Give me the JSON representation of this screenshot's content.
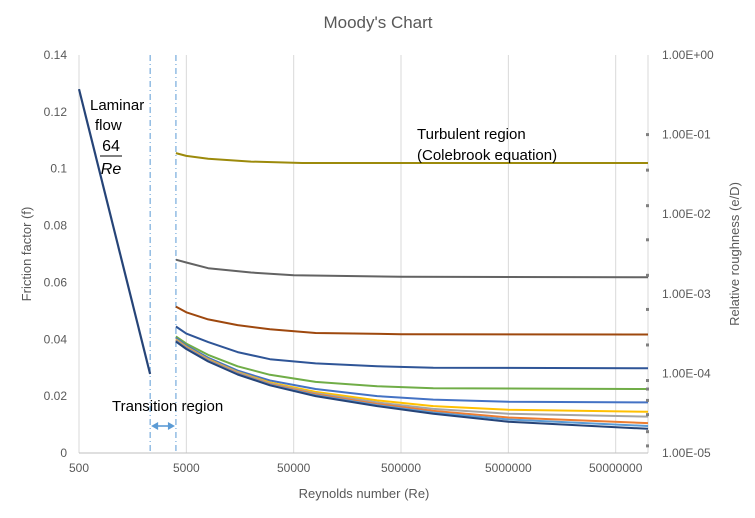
{
  "chart_data": {
    "type": "line",
    "title": "Moody's Chart",
    "xlabel": "Reynolds number (Re)",
    "ylabel": "Friction factor (f)",
    "y2label": "Relative roughness (e/D)",
    "x_scale": "log",
    "x_ticks": [
      500,
      5000,
      50000,
      500000,
      5000000,
      50000000
    ],
    "x_tick_labels": [
      "500",
      "5000",
      "50000",
      "500000",
      "5000000",
      "50000000"
    ],
    "xlim": [
      500,
      100000000
    ],
    "ylim": [
      0,
      0.14
    ],
    "y_ticks": [
      0,
      0.02,
      0.04,
      0.06,
      0.08,
      0.1,
      0.12,
      0.14
    ],
    "y_tick_labels": [
      "0",
      "0.02",
      "0.04",
      "0.06",
      "0.08",
      "0.1",
      "0.12",
      "0.14"
    ],
    "y2_scale": "log",
    "y2_ticks": [
      1,
      0.1,
      0.01,
      0.001,
      0.0001,
      1e-05
    ],
    "y2_tick_labels": [
      "1.00E+00",
      "1.00E-01",
      "1.00E-02",
      "1.00E-03",
      "1.00E-04",
      "1.00E-05"
    ],
    "grid": "vertical",
    "laminar": {
      "x": [
        500,
        2300
      ],
      "y": [
        0.128,
        0.0278
      ],
      "color": "#264478"
    },
    "transition_lines": [
      2300,
      4000
    ],
    "series": [
      {
        "color": "#9c8a0b",
        "x": [
          4000,
          5000,
          8000,
          20000,
          60000,
          100000000
        ],
        "y": [
          0.1055,
          0.1045,
          0.1035,
          0.1025,
          0.102,
          0.102
        ]
      },
      {
        "color": "#636363",
        "x": [
          4000,
          5000,
          8000,
          20000,
          50000,
          500000,
          100000000
        ],
        "y": [
          0.068,
          0.067,
          0.065,
          0.0635,
          0.0625,
          0.062,
          0.0618
        ]
      },
      {
        "color": "#9e480e",
        "x": [
          4000,
          5000,
          8000,
          15000,
          30000,
          80000,
          500000,
          100000000
        ],
        "y": [
          0.0515,
          0.0495,
          0.047,
          0.045,
          0.0435,
          0.0422,
          0.0418,
          0.0417
        ]
      },
      {
        "color": "#2f5597",
        "x": [
          4000,
          5000,
          8000,
          15000,
          30000,
          80000,
          300000,
          1000000,
          100000000
        ],
        "y": [
          0.0445,
          0.042,
          0.039,
          0.0355,
          0.033,
          0.0315,
          0.0305,
          0.03,
          0.0298
        ]
      },
      {
        "color": "#70ad47",
        "x": [
          4000,
          5000,
          8000,
          15000,
          30000,
          80000,
          300000,
          1000000,
          100000000
        ],
        "y": [
          0.041,
          0.0385,
          0.0345,
          0.0305,
          0.0275,
          0.025,
          0.0235,
          0.0228,
          0.0225
        ]
      },
      {
        "color": "#4472c4",
        "x": [
          4000,
          5000,
          8000,
          15000,
          30000,
          80000,
          300000,
          1000000,
          5000000,
          100000000
        ],
        "y": [
          0.0405,
          0.0378,
          0.0335,
          0.029,
          0.0255,
          0.0225,
          0.02,
          0.0188,
          0.018,
          0.0178
        ]
      },
      {
        "color": "#ffc000",
        "x": [
          4000,
          5000,
          8000,
          15000,
          30000,
          80000,
          300000,
          1000000,
          5000000,
          100000000
        ],
        "y": [
          0.04,
          0.0374,
          0.033,
          0.0285,
          0.0248,
          0.0215,
          0.0185,
          0.0165,
          0.0152,
          0.0145
        ]
      },
      {
        "color": "#a5a5a5",
        "x": [
          4000,
          5000,
          8000,
          15000,
          30000,
          80000,
          300000,
          1000000,
          5000000,
          100000000
        ],
        "y": [
          0.0398,
          0.0372,
          0.0328,
          0.0283,
          0.0245,
          0.021,
          0.0178,
          0.0155,
          0.0138,
          0.0128
        ]
      },
      {
        "color": "#ed7d31",
        "x": [
          4000,
          5000,
          8000,
          15000,
          30000,
          80000,
          300000,
          1000000,
          5000000,
          100000000
        ],
        "y": [
          0.0396,
          0.037,
          0.0326,
          0.028,
          0.0242,
          0.0206,
          0.0172,
          0.0148,
          0.0125,
          0.0105
        ]
      },
      {
        "color": "#5b9bd5",
        "x": [
          4000,
          5000,
          8000,
          15000,
          30000,
          80000,
          300000,
          1000000,
          5000000,
          100000000
        ],
        "y": [
          0.0394,
          0.0368,
          0.0324,
          0.0278,
          0.024,
          0.0203,
          0.0168,
          0.0142,
          0.0118,
          0.0095
        ]
      },
      {
        "color": "#264478",
        "x": [
          4000,
          5000,
          8000,
          15000,
          30000,
          80000,
          300000,
          1000000,
          5000000,
          100000000
        ],
        "y": [
          0.0392,
          0.0366,
          0.0322,
          0.0276,
          0.0238,
          0.02,
          0.0165,
          0.0138,
          0.011,
          0.0085
        ]
      }
    ],
    "annotations": {
      "laminar_line1": "Laminar",
      "laminar_line2": "flow",
      "laminar_num": "64",
      "laminar_den": "Re",
      "turbulent_line1": "Turbulent region",
      "turbulent_line2": "(Colebrook equation)",
      "transition": "Transition region"
    },
    "edge_markers": {
      "color": "#808080",
      "y": [
        0.112,
        0.0995,
        0.087,
        0.075,
        0.0625,
        0.0505,
        0.038,
        0.0255,
        0.0225,
        0.0185,
        0.0135,
        0.0075,
        0.0025
      ]
    }
  }
}
